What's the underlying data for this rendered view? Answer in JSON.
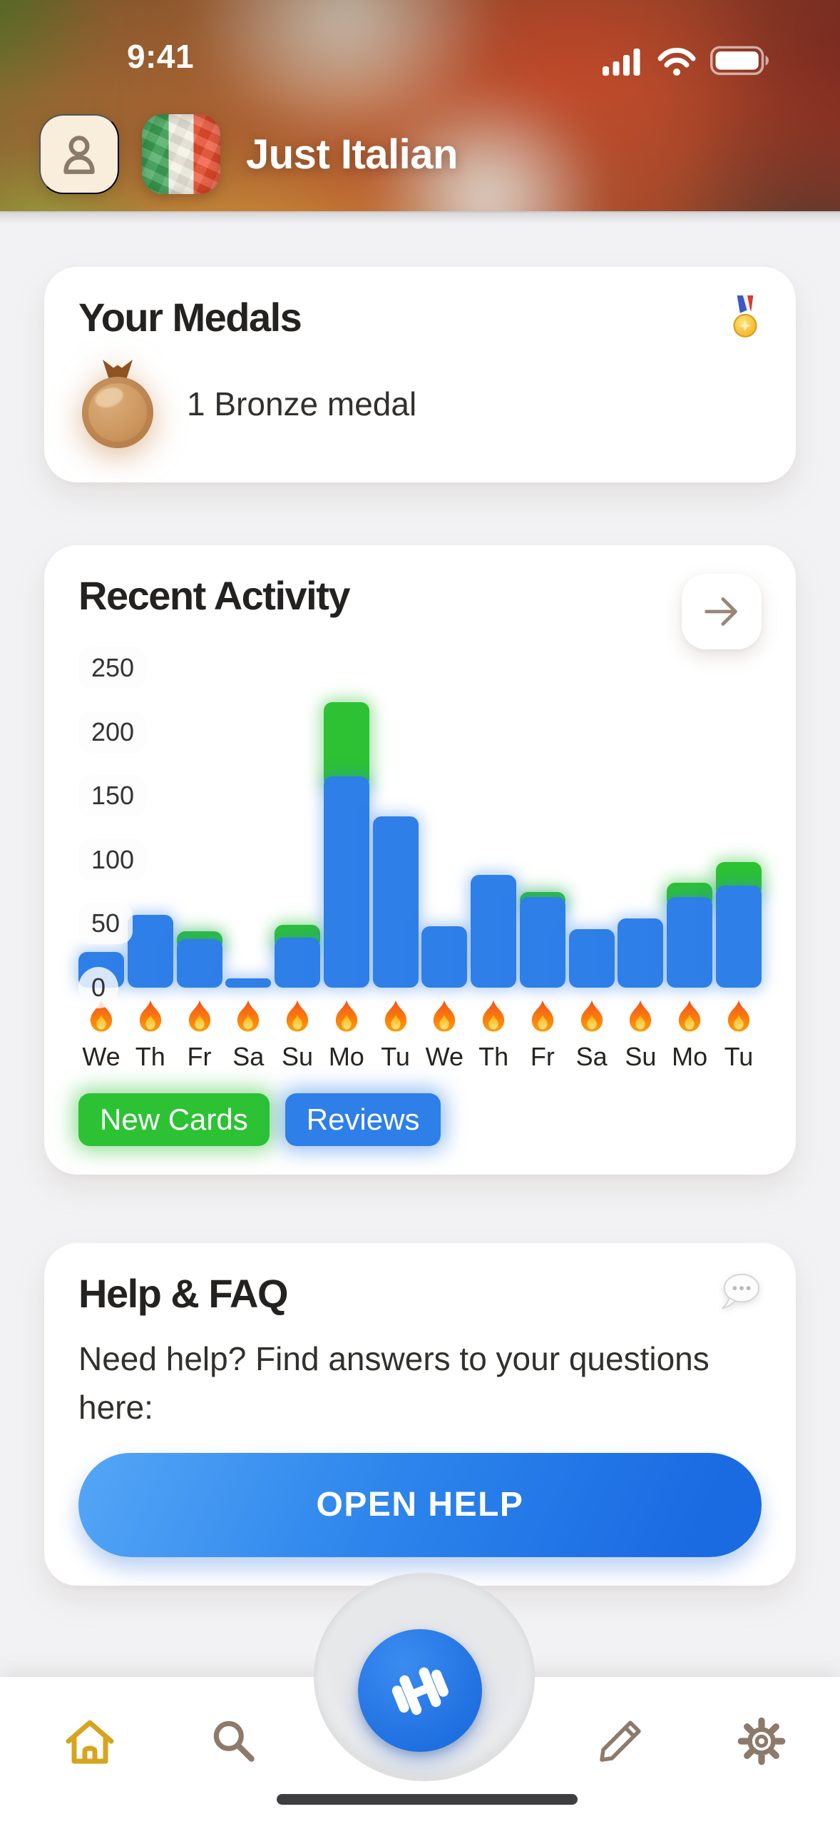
{
  "status_bar": {
    "time": "9:41"
  },
  "header": {
    "app_title": "Just Italian"
  },
  "medals_card": {
    "title": "Your Medals",
    "medal_label": "1 Bronze medal"
  },
  "activity_card": {
    "title": "Recent Activity",
    "legend": [
      {
        "label": "New Cards",
        "color": "#2cc234"
      },
      {
        "label": "Reviews",
        "color": "#2e7fe8"
      }
    ]
  },
  "chart_data": {
    "type": "bar",
    "stacked": true,
    "title": "Recent Activity",
    "categories": [
      "We",
      "Th",
      "Fr",
      "Sa",
      "Su",
      "Mo",
      "Tu",
      "We",
      "Th",
      "Fr",
      "Sa",
      "Su",
      "Mo",
      "Tu"
    ],
    "series": [
      {
        "name": "New Cards",
        "color": "#2cc234",
        "values": [
          0,
          0,
          6,
          0,
          10,
          58,
          0,
          0,
          0,
          4,
          0,
          0,
          11,
          18
        ]
      },
      {
        "name": "Reviews",
        "color": "#2e7fe8",
        "values": [
          28,
          57,
          38,
          7,
          39,
          165,
          134,
          48,
          88,
          71,
          46,
          54,
          71,
          80
        ]
      }
    ],
    "y_ticks": [
      250,
      200,
      150,
      100,
      50,
      0
    ],
    "ylim": [
      0,
      250
    ],
    "xlabel": "",
    "ylabel": "",
    "grid": false,
    "legend_position": "bottom",
    "x_marker_icon": "flame-icon"
  },
  "help_card": {
    "title": "Help & FAQ",
    "body": "Need help? Find answers to your questions here:",
    "button_label": "OPEN HELP"
  },
  "nav": {
    "items": [
      "home",
      "search",
      "train",
      "edit",
      "settings"
    ],
    "active": "home"
  },
  "colors": {
    "bar_blue": "#2e7fe8",
    "bar_green": "#2cc234",
    "fab_blue": "#2276e3",
    "home_active": "#d6a41d",
    "nav_icon": "#8d7a6a"
  }
}
